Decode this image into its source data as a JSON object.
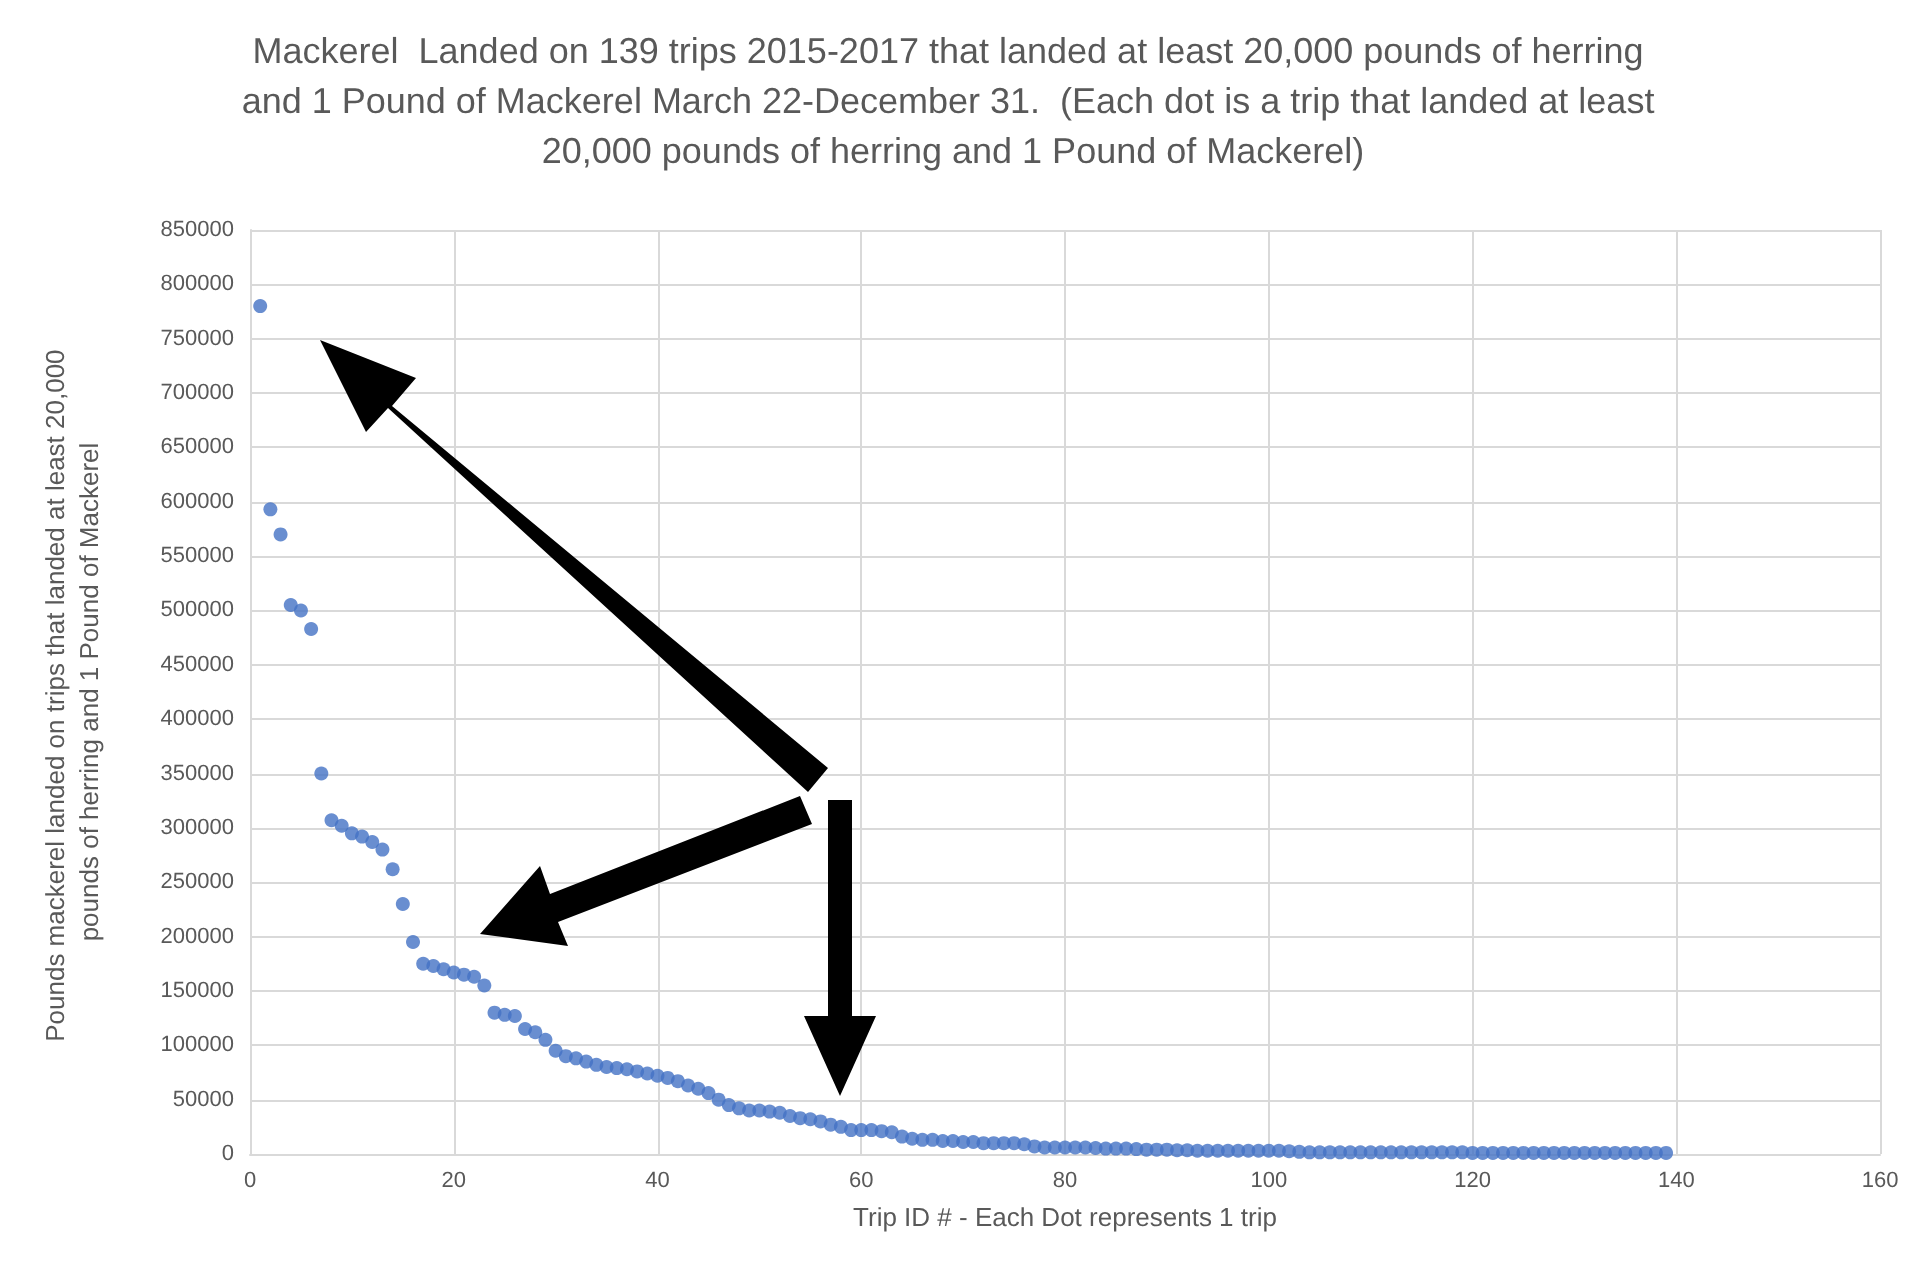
{
  "chart_data": {
    "type": "scatter",
    "title": "Mackerel  Landed on 139 trips 2015-2017 that landed at least 20,000 pounds of herring and 1 Pound of Mackerel March 22-December 31.  (Each dot is a trip that landed at least 20,000 pounds of herring and 1 Pound of Mackerel)",
    "xlabel": "Trip ID # - Each Dot represents 1 trip",
    "ylabel": "Pounds mackerel landed on trips that landed at least 20,000 pounds of herring and 1 Pound of Mackerel",
    "x": [
      1,
      2,
      3,
      4,
      5,
      6,
      7,
      8,
      9,
      10,
      11,
      12,
      13,
      14,
      15,
      16,
      17,
      18,
      19,
      20,
      21,
      22,
      23,
      24,
      25,
      26,
      27,
      28,
      29,
      30,
      31,
      32,
      33,
      34,
      35,
      36,
      37,
      38,
      39,
      40,
      41,
      42,
      43,
      44,
      45,
      46,
      47,
      48,
      49,
      50,
      51,
      52,
      53,
      54,
      55,
      56,
      57,
      58,
      59,
      60,
      61,
      62,
      63,
      64,
      65,
      66,
      67,
      68,
      69,
      70,
      71,
      72,
      73,
      74,
      75,
      76,
      77,
      78,
      79,
      80,
      81,
      82,
      83,
      84,
      85,
      86,
      87,
      88,
      89,
      90,
      91,
      92,
      93,
      94,
      95,
      96,
      97,
      98,
      99,
      100,
      101,
      102,
      103,
      104,
      105,
      106,
      107,
      108,
      109,
      110,
      111,
      112,
      113,
      114,
      115,
      116,
      117,
      118,
      119,
      120,
      121,
      122,
      123,
      124,
      125,
      126,
      127,
      128,
      129,
      130,
      131,
      132,
      133,
      134,
      135,
      136,
      137,
      138,
      139
    ],
    "series": [
      {
        "color": "#4472c4",
        "values": [
          780000,
          593000,
          570000,
          505000,
          500000,
          483000,
          350000,
          307000,
          302000,
          295000,
          292000,
          287000,
          280000,
          262000,
          230000,
          195000,
          175000,
          173000,
          170000,
          167000,
          165000,
          163000,
          155000,
          130000,
          128000,
          127000,
          115000,
          112000,
          105000,
          95000,
          90000,
          88000,
          85000,
          82000,
          80000,
          79000,
          78000,
          76000,
          74000,
          72000,
          70000,
          67000,
          63000,
          60000,
          56000,
          50000,
          45000,
          42000,
          40000,
          40000,
          39000,
          38000,
          35000,
          33000,
          32000,
          30000,
          27000,
          25000,
          22000,
          22000,
          22000,
          21000,
          20000,
          16000,
          14000,
          13000,
          13000,
          12000,
          12000,
          11000,
          11000,
          10000,
          10000,
          10000,
          10000,
          9000,
          7000,
          6000,
          6000,
          6000,
          6000,
          6000,
          5500,
          5000,
          5000,
          5000,
          4500,
          4000,
          4000,
          4000,
          3500,
          3500,
          3000,
          3000,
          3000,
          3000,
          3000,
          3000,
          3000,
          3000,
          3000,
          2500,
          2000,
          1500,
          1500,
          1500,
          1500,
          1500,
          1500,
          1500,
          1500,
          1500,
          1500,
          1500,
          1500,
          1500,
          1500,
          1500,
          1500,
          1000,
          1000,
          1000,
          1000,
          1000,
          1000,
          1000,
          1000,
          1000,
          1000,
          1000,
          1000,
          1000,
          1000,
          1000,
          1000,
          1000,
          1000,
          1000,
          1000
        ]
      }
    ],
    "xlim": [
      0,
      160
    ],
    "xticks": [
      0,
      20,
      40,
      60,
      80,
      100,
      120,
      140,
      160
    ],
    "ylim": [
      0,
      850000
    ],
    "yticks": [
      0,
      50000,
      100000,
      150000,
      200000,
      250000,
      300000,
      350000,
      400000,
      450000,
      500000,
      550000,
      600000,
      650000,
      700000,
      750000,
      800000,
      850000
    ],
    "grid": true,
    "marker": "circle"
  }
}
